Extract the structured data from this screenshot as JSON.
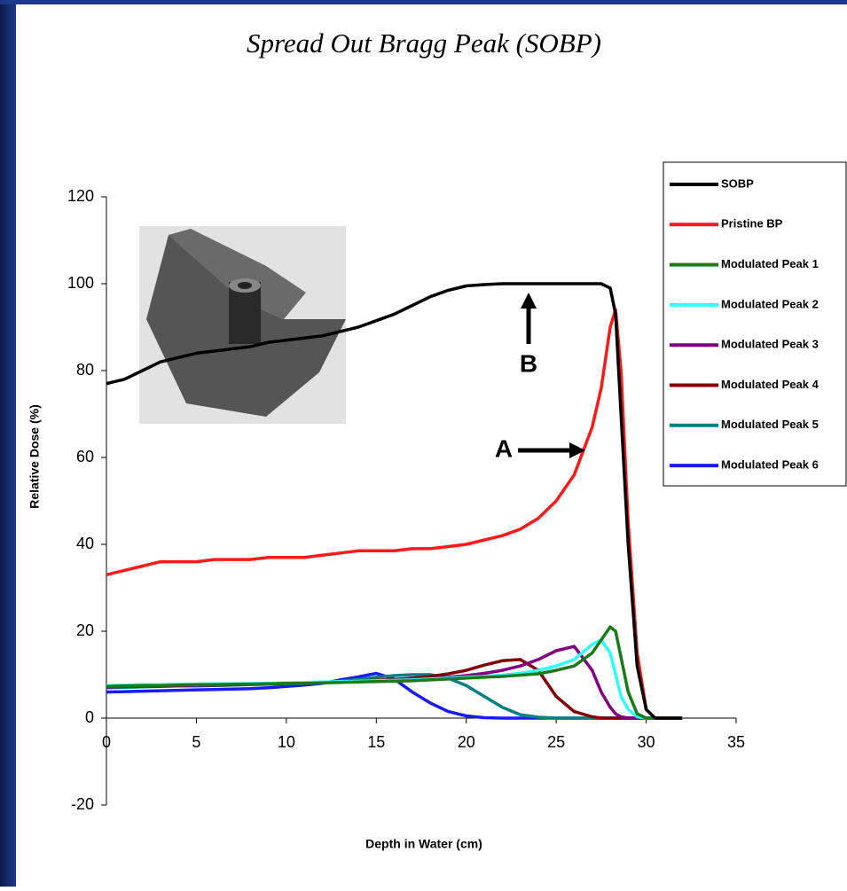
{
  "chart_data": {
    "type": "line",
    "title": "Spread Out Bragg Peak (SOBP)",
    "x_label": "Depth in Water  (cm)",
    "y_label": "Relative Dose  (%)",
    "annotations": [
      "A",
      "B"
    ],
    "xlim": [
      0,
      35
    ],
    "xticks": [
      0,
      5,
      10,
      15,
      20,
      25,
      30,
      35
    ],
    "ylim": [
      -20,
      120
    ],
    "yticks": [
      -20,
      0,
      20,
      40,
      60,
      80,
      100,
      120
    ],
    "grid": false,
    "legend": "right",
    "x": [
      0,
      1,
      2,
      3,
      4,
      5,
      6,
      7,
      8,
      9,
      10,
      11,
      12,
      13,
      14,
      15,
      16,
      17,
      18,
      19,
      20,
      21,
      22,
      23,
      24,
      25,
      26,
      27,
      27.5,
      28,
      28.3,
      28.6,
      29,
      29.5,
      30,
      30.5,
      31,
      32
    ],
    "series": [
      {
        "name": "SOBP",
        "color": "#000000",
        "values": [
          77,
          78,
          80,
          82,
          83,
          84,
          84.5,
          85,
          85.5,
          86.5,
          87,
          87.5,
          88,
          89,
          90,
          91.5,
          93,
          95,
          97,
          98.5,
          99.5,
          99.8,
          100,
          100,
          100,
          100,
          100,
          100,
          100,
          99,
          93,
          70,
          40,
          12,
          2,
          0,
          0,
          0
        ]
      },
      {
        "name": "Pristine BP",
        "color": "#ff1a1a",
        "values": [
          33,
          34,
          35,
          36,
          36,
          36,
          36.5,
          36.5,
          36.5,
          37,
          37,
          37,
          37.5,
          38,
          38.5,
          38.5,
          38.5,
          39,
          39,
          39.5,
          40,
          41,
          42,
          43.5,
          46,
          50,
          56,
          67,
          76,
          90,
          94,
          80,
          45,
          15,
          2,
          0,
          0,
          0
        ]
      },
      {
        "name": "Modulated Peak 1",
        "color": "#1a7a1a",
        "values": [
          7.3,
          7.4,
          7.5,
          7.5,
          7.6,
          7.7,
          7.7,
          7.8,
          7.8,
          7.9,
          8,
          8,
          8.1,
          8.2,
          8.3,
          8.4,
          8.5,
          8.6,
          8.8,
          9,
          9.2,
          9.4,
          9.6,
          9.9,
          10.2,
          11,
          12,
          15,
          18,
          21,
          20,
          14,
          6,
          1,
          0,
          0,
          0,
          0
        ]
      },
      {
        "name": "Modulated Peak 2",
        "color": "#33ffff",
        "values": [
          7.5,
          7.6,
          7.7,
          7.7,
          7.8,
          7.8,
          7.9,
          7.9,
          8,
          8,
          8.1,
          8.2,
          8.3,
          8.4,
          8.5,
          8.6,
          8.7,
          8.8,
          9,
          9.2,
          9.4,
          9.6,
          9.9,
          10.3,
          11,
          12,
          13.5,
          17,
          18,
          15,
          10,
          5,
          2,
          0.3,
          0,
          0,
          0,
          0
        ]
      },
      {
        "name": "Modulated Peak 3",
        "color": "#800080",
        "values": [
          7.2,
          7.3,
          7.4,
          7.5,
          7.5,
          7.6,
          7.7,
          7.7,
          7.8,
          7.9,
          8,
          8.1,
          8.2,
          8.3,
          8.4,
          8.5,
          8.7,
          8.9,
          9.1,
          9.4,
          9.8,
          10.3,
          11,
          12,
          13.5,
          15.5,
          16.5,
          11,
          6,
          2.5,
          1,
          0.3,
          0,
          0,
          0,
          0,
          0,
          0
        ]
      },
      {
        "name": "Modulated Peak 4",
        "color": "#800000",
        "values": [
          7.2,
          7.3,
          7.4,
          7.4,
          7.5,
          7.6,
          7.6,
          7.7,
          7.8,
          7.9,
          8,
          8.1,
          8.2,
          8.4,
          8.5,
          8.7,
          8.9,
          9.2,
          9.6,
          10.2,
          11,
          12.2,
          13.2,
          13.5,
          11,
          5,
          1.5,
          0.3,
          0,
          0,
          0,
          0,
          0,
          0,
          0,
          0,
          0,
          0
        ]
      },
      {
        "name": "Modulated Peak 5",
        "color": "#008080",
        "values": [
          7,
          7.1,
          7.2,
          7.3,
          7.4,
          7.4,
          7.5,
          7.6,
          7.7,
          7.8,
          7.9,
          8,
          8.2,
          8.5,
          8.9,
          9.4,
          9.8,
          10,
          10,
          9.2,
          7.5,
          5,
          2.5,
          0.8,
          0.2,
          0,
          0,
          0,
          0,
          0,
          0,
          0,
          0,
          0,
          0,
          0,
          0,
          0
        ]
      },
      {
        "name": "Modulated Peak 6",
        "color": "#1a1aff",
        "values": [
          6,
          6.1,
          6.2,
          6.3,
          6.4,
          6.5,
          6.6,
          6.7,
          6.8,
          7,
          7.3,
          7.6,
          8,
          8.8,
          9.5,
          10.3,
          9,
          6,
          3.5,
          1.5,
          0.5,
          0.1,
          0,
          0,
          0,
          0,
          0,
          0,
          0,
          0,
          0,
          0,
          0,
          0,
          0,
          0,
          0,
          0
        ]
      }
    ]
  }
}
